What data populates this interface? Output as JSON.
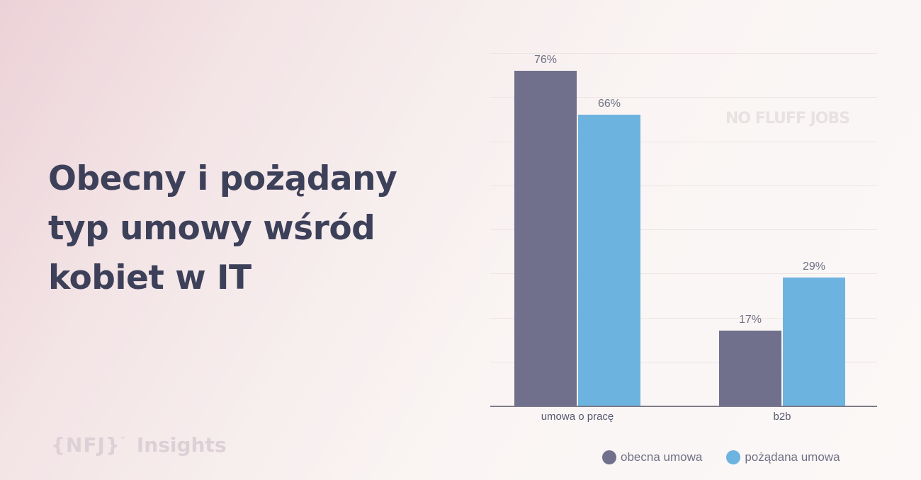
{
  "title": {
    "lines": [
      "Obecny i pożądany",
      "typ umowy wśród",
      "kobiet w IT"
    ]
  },
  "brand": {
    "bracket_logo": "{NFJ}",
    "tm": "™",
    "insights": "Insights"
  },
  "watermark": "NO FLUFF JOBS",
  "colors": {
    "obecna": "#70708c",
    "pozadana": "#6db3e0",
    "text": "#3d4059"
  },
  "legend": [
    {
      "label": "obecna umowa",
      "color": "#70708c"
    },
    {
      "label": "pożądana umowa",
      "color": "#6db3e0"
    }
  ],
  "chart_data": {
    "type": "bar",
    "title": "Obecny i pożądany typ umowy wśród kobiet w IT",
    "categories": [
      "umowa o pracę",
      "b2b"
    ],
    "series": [
      {
        "name": "obecna umowa",
        "values": [
          76,
          17
        ],
        "labels": [
          "76%",
          "17%"
        ]
      },
      {
        "name": "pożądana umowa",
        "values": [
          66,
          29
        ],
        "labels": [
          "66%",
          "29%"
        ]
      }
    ],
    "xlabel": "",
    "ylabel": "",
    "ylim": [
      0,
      80
    ],
    "grid": true,
    "gridlines_step": 10,
    "legend_position": "bottom-right",
    "unit": "%"
  }
}
